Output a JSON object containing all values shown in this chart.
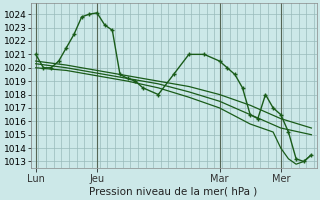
{
  "background_color": "#cce8e8",
  "grid_color": "#99bbbb",
  "line_color": "#1a5c1a",
  "xlabel": "Pression niveau de la mer( hPa )",
  "ylim": [
    1012.5,
    1024.8
  ],
  "yticks": [
    1013,
    1014,
    1015,
    1016,
    1017,
    1018,
    1019,
    1020,
    1021,
    1022,
    1023,
    1024
  ],
  "xtick_labels": [
    "Lun",
    "Jeu",
    "Mar",
    "Mer"
  ],
  "xtick_positions": [
    0,
    24,
    72,
    96
  ],
  "vline_positions": [
    0,
    24,
    72,
    96
  ],
  "xlim": [
    -2,
    110
  ],
  "series1_x": [
    0,
    3,
    6,
    9,
    12,
    15,
    18,
    21,
    24,
    27,
    30,
    33,
    36,
    39,
    42,
    48,
    54,
    60,
    66,
    72,
    75,
    78,
    81,
    84,
    87,
    90,
    93,
    96,
    99,
    102,
    105,
    108
  ],
  "series1_y": [
    1021.0,
    1020.0,
    1020.0,
    1020.5,
    1021.5,
    1022.5,
    1023.8,
    1024.0,
    1024.1,
    1023.2,
    1022.8,
    1019.5,
    1019.2,
    1019.0,
    1018.5,
    1018.0,
    1019.5,
    1021.0,
    1021.0,
    1020.5,
    1020.0,
    1019.5,
    1018.5,
    1016.5,
    1016.2,
    1018.0,
    1017.0,
    1016.5,
    1015.2,
    1013.2,
    1013.0,
    1013.5
  ],
  "series2_x": [
    0,
    12,
    24,
    36,
    48,
    60,
    72,
    84,
    96,
    108
  ],
  "series2_y": [
    1020.5,
    1020.2,
    1019.8,
    1019.4,
    1019.0,
    1018.6,
    1018.0,
    1017.2,
    1016.2,
    1015.5
  ],
  "series3_x": [
    0,
    12,
    24,
    36,
    48,
    60,
    72,
    84,
    96,
    108
  ],
  "series3_y": [
    1020.3,
    1020.0,
    1019.6,
    1019.2,
    1018.8,
    1018.2,
    1017.5,
    1016.5,
    1015.5,
    1015.0
  ],
  "series4_x": [
    0,
    12,
    24,
    36,
    48,
    60,
    72,
    84,
    93,
    96,
    99,
    102,
    105,
    108
  ],
  "series4_y": [
    1020.0,
    1019.8,
    1019.4,
    1019.0,
    1018.5,
    1017.8,
    1017.0,
    1015.8,
    1015.2,
    1014.0,
    1013.2,
    1012.8,
    1013.0,
    1013.5
  ]
}
